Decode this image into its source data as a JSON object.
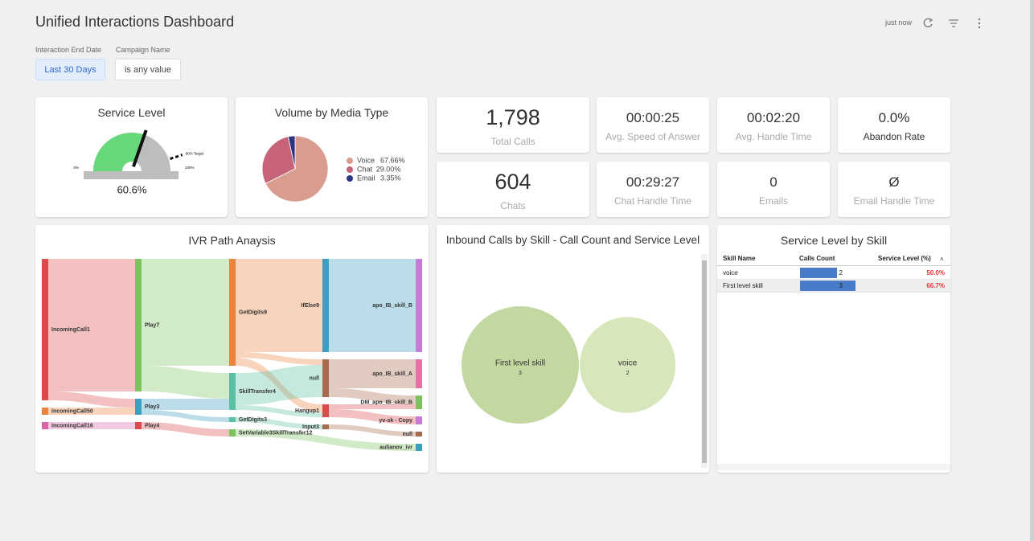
{
  "header": {
    "title": "Unified Interactions Dashboard",
    "refresh": "just now"
  },
  "filters": [
    {
      "label": "Interaction End Date",
      "value": "Last 30 Days"
    },
    {
      "label": "Campaign Name",
      "value": "is any value"
    }
  ],
  "gauge": {
    "title": "Service Level",
    "lim": [
      0,
      100
    ],
    "value": 60.6,
    "value_label": "60.6%",
    "color": "#67d97a",
    "ticks": [
      {
        "value": 0,
        "label": "0%"
      },
      {
        "value": 100,
        "label": "100%"
      }
    ],
    "target": {
      "value": 90,
      "label": "90% Target"
    }
  },
  "pie": {
    "title": "Volume by Media Type",
    "categories": [
      "Voice",
      "Chat",
      "Email"
    ],
    "values": [
      67.66,
      29.0,
      3.35
    ],
    "value_labels": [
      "67.66%",
      "29.00%",
      "3.35%"
    ],
    "colors": [
      "#d99c8f",
      "#c8647a",
      "#2c3584"
    ]
  },
  "kpis": [
    {
      "value": "1,798",
      "label": "Total Calls"
    },
    {
      "value": "00:00:25",
      "label": "Avg. Speed of Answer"
    },
    {
      "value": "00:02:20",
      "label": "Avg. Handle Time"
    },
    {
      "value": "0.0%",
      "label": "Abandon Rate"
    },
    {
      "value": "604",
      "label": "Chats"
    },
    {
      "value": "00:29:27",
      "label": "Chat Handle Time"
    },
    {
      "value": "0",
      "label": "Emails"
    },
    {
      "value": "Ø",
      "label": "Email Handle Time"
    }
  ],
  "sankey": {
    "title": "IVR Path Anaysis",
    "nodes": [
      {
        "label": "IncomingCall1",
        "column": 0,
        "color": "#d94a4a"
      },
      {
        "label": "IncomingCall50",
        "column": 0,
        "color": "#e8843c"
      },
      {
        "label": "IncomingCall16",
        "column": 0,
        "color": "#d865a5"
      },
      {
        "label": "Play7",
        "column": 1,
        "color": "#7cc35e"
      },
      {
        "label": "Play3",
        "column": 1,
        "color": "#3a9fc0"
      },
      {
        "label": "Play4",
        "column": 1,
        "color": "#d94a4a"
      },
      {
        "label": "GetDigits9",
        "column": 2,
        "color": "#e8843c"
      },
      {
        "label": "SkillTransfer4",
        "column": 2,
        "color": "#5bbfa3"
      },
      {
        "label": "GetDigits3",
        "column": 2,
        "color": "#5bbfa3"
      },
      {
        "label": "SetVariable3SkillTransfer12",
        "column": 2,
        "color": "#7cc35e"
      },
      {
        "label": "IfElse9",
        "column": 3,
        "color": "#3a9fc0"
      },
      {
        "label": "null",
        "column": 3,
        "color": "#a86a4e"
      },
      {
        "label": "Hangup1",
        "column": 3,
        "color": "#d94a4a"
      },
      {
        "label": "Input3",
        "column": 3,
        "color": "#a86a4e"
      },
      {
        "label": "apo_IB_skill_B",
        "column": 4,
        "color": "#c77bd6"
      },
      {
        "label": "apo_IB_skill_A",
        "column": 4,
        "color": "#e86fa5"
      },
      {
        "label": "DM_apo_IB_skill_B",
        "column": 4,
        "color": "#7cc35e"
      },
      {
        "label": "yv-sk - Copy",
        "column": 4,
        "color": "#c77bd6"
      },
      {
        "label": "null",
        "column": 4,
        "color": "#a86a4e"
      },
      {
        "label": "aulianov_ivr",
        "column": 4,
        "color": "#3a9fc0"
      }
    ],
    "links": [
      {
        "source": 0,
        "target": 3,
        "value": 165
      },
      {
        "source": 0,
        "target": 4,
        "value": 11
      },
      {
        "source": 1,
        "target": 4,
        "value": 9
      },
      {
        "source": 2,
        "target": 5,
        "value": 9
      },
      {
        "source": 3,
        "target": 6,
        "value": 133
      },
      {
        "source": 3,
        "target": 7,
        "value": 32
      },
      {
        "source": 4,
        "target": 7,
        "value": 14
      },
      {
        "source": 4,
        "target": 8,
        "value": 6
      },
      {
        "source": 5,
        "target": 9,
        "value": 9
      },
      {
        "source": 6,
        "target": 10,
        "value": 116
      },
      {
        "source": 6,
        "target": 11,
        "value": 7
      },
      {
        "source": 6,
        "target": 12,
        "value": 10
      },
      {
        "source": 7,
        "target": 11,
        "value": 40
      },
      {
        "source": 7,
        "target": 12,
        "value": 6
      },
      {
        "source": 8,
        "target": 13,
        "value": 6
      },
      {
        "source": 9,
        "target": 19,
        "value": 9
      },
      {
        "source": 10,
        "target": 14,
        "value": 116
      },
      {
        "source": 11,
        "target": 15,
        "value": 36
      },
      {
        "source": 11,
        "target": 16,
        "value": 11
      },
      {
        "source": 12,
        "target": 16,
        "value": 6
      },
      {
        "source": 12,
        "target": 17,
        "value": 10
      },
      {
        "source": 13,
        "target": 18,
        "value": 6
      }
    ]
  },
  "bubble": {
    "title": "Inbound Calls by Skill - Call Count and Service Level",
    "categories": [
      "First level skill",
      "voice"
    ],
    "values": [
      3,
      2
    ],
    "colors": [
      "#c2d8a0",
      "#d8e6bb"
    ]
  },
  "table": {
    "title": "Service Level by Skill",
    "columns": [
      "Skill Name",
      "Calls Count",
      "Service Level (%)"
    ],
    "rows": [
      {
        "skill": "voice",
        "calls": 2,
        "service_level": "50.0%"
      },
      {
        "skill": "First level skill",
        "calls": 3,
        "service_level": "66.7%"
      }
    ],
    "bar_color": "#4a7bc8"
  }
}
